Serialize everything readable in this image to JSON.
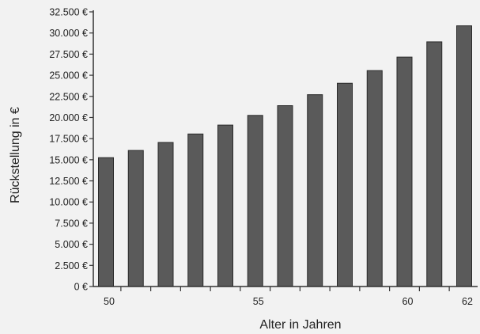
{
  "chart_data": {
    "type": "bar",
    "title": "",
    "xlabel": "Alter in Jahren",
    "ylabel": "Rückstellung in €",
    "x": [
      50,
      51,
      52,
      53,
      54,
      55,
      56,
      57,
      58,
      59,
      60,
      61,
      62
    ],
    "values": [
      15250,
      16100,
      17050,
      18050,
      19100,
      20250,
      21400,
      22700,
      24050,
      25550,
      27150,
      28950,
      30850
    ],
    "ylim": [
      0,
      32500
    ],
    "y_ticks": [
      0,
      2500,
      5000,
      7500,
      10000,
      12500,
      15000,
      17500,
      20000,
      22500,
      25000,
      27500,
      30000,
      32500
    ],
    "y_tick_labels": [
      "0 €",
      "2.500 €",
      "5.000 €",
      "7.500 €",
      "10.000 €",
      "12.500 €",
      "15.000 €",
      "17.500 €",
      "20.000 €",
      "22.500 €",
      "25.000 €",
      "27.500 €",
      "30.000 €",
      "32.500 €"
    ],
    "x_tick_labels": [
      {
        "x": 50,
        "label": "50"
      },
      {
        "x": 55,
        "label": "55"
      },
      {
        "x": 60,
        "label": "60"
      },
      {
        "x": 62,
        "label": "62"
      }
    ],
    "grid": false,
    "legend": "none",
    "bar_color": "#5a5a5a",
    "bar_edge_color": "#2a2a2a"
  }
}
